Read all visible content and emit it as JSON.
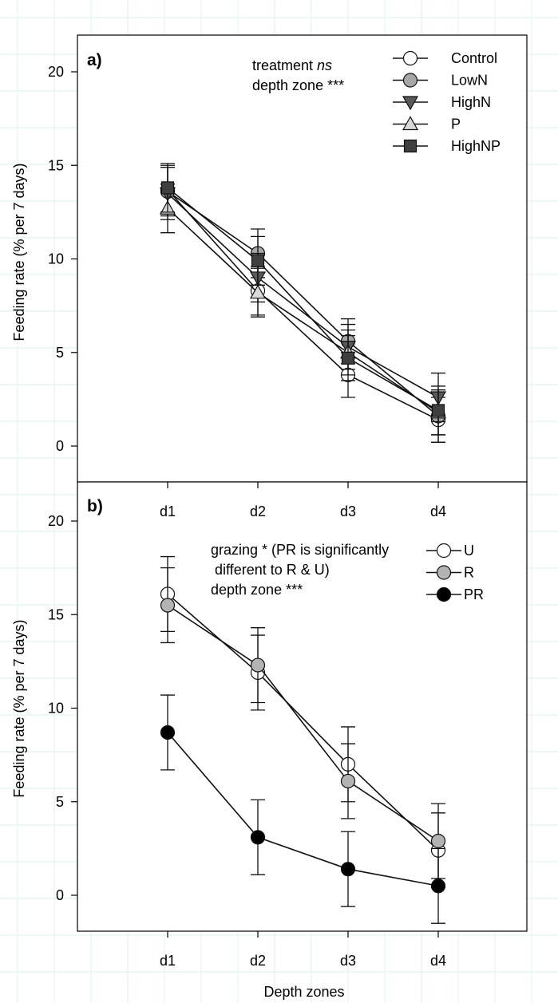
{
  "x_axis_label": "Depth zones",
  "panels": [
    {
      "panel_label": "a)",
      "ylabel": "Feeding rate (% per 7 days)",
      "annotation_lines": [
        {
          "prefix": "treatment ",
          "italic": "ns",
          "suffix": ""
        },
        {
          "prefix": "depth zone ***",
          "italic": "",
          "suffix": ""
        }
      ]
    },
    {
      "panel_label": "b)",
      "ylabel": "Feeding rate (% per 7 days)",
      "annotation_lines": [
        {
          "prefix": "grazing * (PR is significantly",
          "italic": "",
          "suffix": ""
        },
        {
          "prefix": " different to R & U)",
          "italic": "",
          "suffix": ""
        },
        {
          "prefix": "depth zone ***",
          "italic": "",
          "suffix": ""
        }
      ]
    }
  ],
  "chart_data": [
    {
      "type": "line",
      "panel": "a)",
      "categories": [
        "d1",
        "d2",
        "d3",
        "d4"
      ],
      "xlabel": "",
      "ylabel": "Feeding rate (% per 7 days)",
      "ylim": [
        -1.3,
        22
      ],
      "yticks": [
        0,
        5,
        10,
        15,
        20
      ],
      "grid": false,
      "legend_position": "top-right",
      "series": [
        {
          "name": "Control",
          "marker": "circle",
          "fill": "#ffffff",
          "values": [
            13.7,
            8.3,
            3.8,
            1.4
          ],
          "errors": [
            1.3,
            1.3,
            1.2,
            1.2
          ]
        },
        {
          "name": "LowN",
          "marker": "circle",
          "fill": "#a6a6a6",
          "values": [
            13.6,
            10.3,
            5.6,
            1.6
          ],
          "errors": [
            1.3,
            1.3,
            1.2,
            1.4
          ]
        },
        {
          "name": "HighN",
          "marker": "triangle-down",
          "fill": "#5a5a5a",
          "values": [
            13.5,
            9.0,
            5.3,
            2.6
          ],
          "errors": [
            1.4,
            1.3,
            1.2,
            1.3
          ]
        },
        {
          "name": "P",
          "marker": "triangle-up",
          "fill": "#d9d9d9",
          "values": [
            12.7,
            8.2,
            5.0,
            1.8
          ],
          "errors": [
            1.3,
            1.3,
            1.2,
            1.2
          ]
        },
        {
          "name": "HighNP",
          "marker": "square",
          "fill": "#3f3f3f",
          "values": [
            13.8,
            9.9,
            4.7,
            1.9
          ],
          "errors": [
            1.3,
            1.3,
            1.2,
            1.3
          ]
        }
      ]
    },
    {
      "type": "line",
      "panel": "b)",
      "categories": [
        "d1",
        "d2",
        "d3",
        "d4"
      ],
      "xlabel": "Depth zones",
      "ylabel": "Feeding rate (% per 7 days)",
      "ylim": [
        -2,
        22
      ],
      "yticks": [
        0,
        5,
        10,
        15,
        20
      ],
      "grid": false,
      "legend_position": "top-right",
      "series": [
        {
          "name": "U",
          "marker": "circle",
          "fill": "#ffffff",
          "values": [
            16.1,
            11.9,
            7.0,
            2.4
          ],
          "errors": [
            2.0,
            2.0,
            2.0,
            2.0
          ]
        },
        {
          "name": "R",
          "marker": "circle",
          "fill": "#b3b3b3",
          "values": [
            15.5,
            12.3,
            6.1,
            2.9
          ],
          "errors": [
            2.0,
            2.0,
            2.0,
            2.0
          ]
        },
        {
          "name": "PR",
          "marker": "circle",
          "fill": "#000000",
          "values": [
            8.7,
            3.1,
            1.4,
            0.5
          ],
          "errors": [
            2.0,
            2.0,
            2.0,
            2.0
          ]
        }
      ]
    }
  ]
}
